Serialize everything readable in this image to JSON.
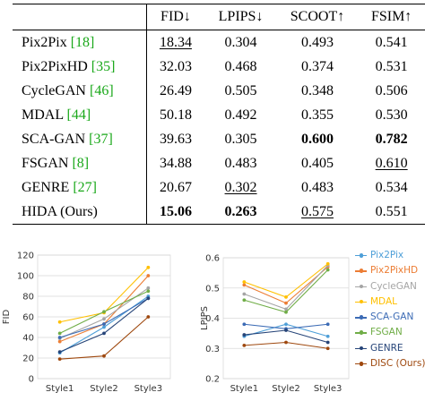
{
  "table": {
    "headers": [
      "",
      "FID↓",
      "LPIPS↓",
      "SCOOT↑",
      "FSIM↑"
    ],
    "rows": [
      {
        "method": "Pix2Pix",
        "ref": "[18]",
        "cells": [
          {
            "v": "18.34",
            "ul": true
          },
          {
            "v": "0.304"
          },
          {
            "v": "0.493"
          },
          {
            "v": "0.541"
          }
        ]
      },
      {
        "method": "Pix2PixHD",
        "ref": "[35]",
        "cells": [
          {
            "v": "32.03"
          },
          {
            "v": "0.468"
          },
          {
            "v": "0.374"
          },
          {
            "v": "0.531"
          }
        ]
      },
      {
        "method": "CycleGAN",
        "ref": "[46]",
        "cells": [
          {
            "v": "26.49"
          },
          {
            "v": "0.505"
          },
          {
            "v": "0.348"
          },
          {
            "v": "0.506"
          }
        ]
      },
      {
        "method": "MDAL",
        "ref": "[44]",
        "cells": [
          {
            "v": "50.18"
          },
          {
            "v": "0.492"
          },
          {
            "v": "0.355"
          },
          {
            "v": "0.530"
          }
        ]
      },
      {
        "method": "SCA-GAN",
        "ref": "[37]",
        "cells": [
          {
            "v": "39.63"
          },
          {
            "v": "0.305"
          },
          {
            "v": "0.600",
            "b": true
          },
          {
            "v": "0.782",
            "b": true
          }
        ]
      },
      {
        "method": "FSGAN",
        "ref": "[8]",
        "cells": [
          {
            "v": "34.88"
          },
          {
            "v": "0.483"
          },
          {
            "v": "0.405"
          },
          {
            "v": "0.610",
            "ul": true
          }
        ]
      },
      {
        "method": "GENRE",
        "ref": "[27]",
        "cells": [
          {
            "v": "20.67"
          },
          {
            "v": "0.302",
            "ul": true
          },
          {
            "v": "0.483"
          },
          {
            "v": "0.534"
          }
        ]
      },
      {
        "method": "HIDA (Ours)",
        "ref": "",
        "cells": [
          {
            "v": "15.06",
            "b": true
          },
          {
            "v": "0.263",
            "b": true
          },
          {
            "v": "0.575",
            "ul": true
          },
          {
            "v": "0.551"
          }
        ]
      }
    ]
  },
  "chart_data": [
    {
      "type": "line",
      "ylabel": "FID",
      "categories": [
        "Style1",
        "Style2",
        "Style3"
      ],
      "ylim": [
        0,
        120
      ],
      "yticks": [
        "0",
        "20",
        "40",
        "60",
        "80",
        "100",
        "120"
      ],
      "grid": true,
      "series": [
        {
          "name": "Pix2Pix",
          "color": "#4e9fd8",
          "values": [
            25,
            50,
            80
          ]
        },
        {
          "name": "Pix2PixHD",
          "color": "#ec7d34",
          "values": [
            36,
            53,
            100
          ]
        },
        {
          "name": "CycleGAN",
          "color": "#a5a5a5",
          "values": [
            39,
            58,
            88
          ]
        },
        {
          "name": "MDAL",
          "color": "#ffc000",
          "values": [
            55,
            64,
            108
          ]
        },
        {
          "name": "SCA-GAN",
          "color": "#3c6bb5",
          "values": [
            40,
            53,
            78
          ]
        },
        {
          "name": "FSGAN",
          "color": "#70ad47",
          "values": [
            44,
            65,
            85
          ]
        },
        {
          "name": "GENRE",
          "color": "#264478",
          "values": [
            26,
            44,
            78
          ]
        },
        {
          "name": "DISC (Ours)",
          "color": "#9e480e",
          "values": [
            19,
            22,
            60
          ]
        }
      ]
    },
    {
      "type": "line",
      "ylabel": "LPIPS",
      "categories": [
        "Style1",
        "Style2",
        "Style3"
      ],
      "ylim": [
        0.2,
        0.6
      ],
      "yticks": [
        "0.2",
        "0.3",
        "0.4",
        "0.5",
        "0.6"
      ],
      "grid": true,
      "legend": "right",
      "series": [
        {
          "name": "Pix2Pix",
          "color": "#4e9fd8",
          "values": [
            0.34,
            0.38,
            0.34
          ]
        },
        {
          "name": "Pix2PixHD",
          "color": "#ec7d34",
          "values": [
            0.51,
            0.45,
            0.57
          ]
        },
        {
          "name": "CycleGAN",
          "color": "#a5a5a5",
          "values": [
            0.48,
            0.43,
            0.575
          ]
        },
        {
          "name": "MDAL",
          "color": "#ffc000",
          "values": [
            0.52,
            0.47,
            0.58
          ]
        },
        {
          "name": "SCA-GAN",
          "color": "#3c6bb5",
          "values": [
            0.38,
            0.365,
            0.38
          ]
        },
        {
          "name": "FSGAN",
          "color": "#70ad47",
          "values": [
            0.46,
            0.42,
            0.56
          ]
        },
        {
          "name": "GENRE",
          "color": "#264478",
          "values": [
            0.345,
            0.36,
            0.32
          ]
        },
        {
          "name": "DISC (Ours)",
          "color": "#9e480e",
          "values": [
            0.31,
            0.32,
            0.3
          ]
        }
      ]
    }
  ]
}
